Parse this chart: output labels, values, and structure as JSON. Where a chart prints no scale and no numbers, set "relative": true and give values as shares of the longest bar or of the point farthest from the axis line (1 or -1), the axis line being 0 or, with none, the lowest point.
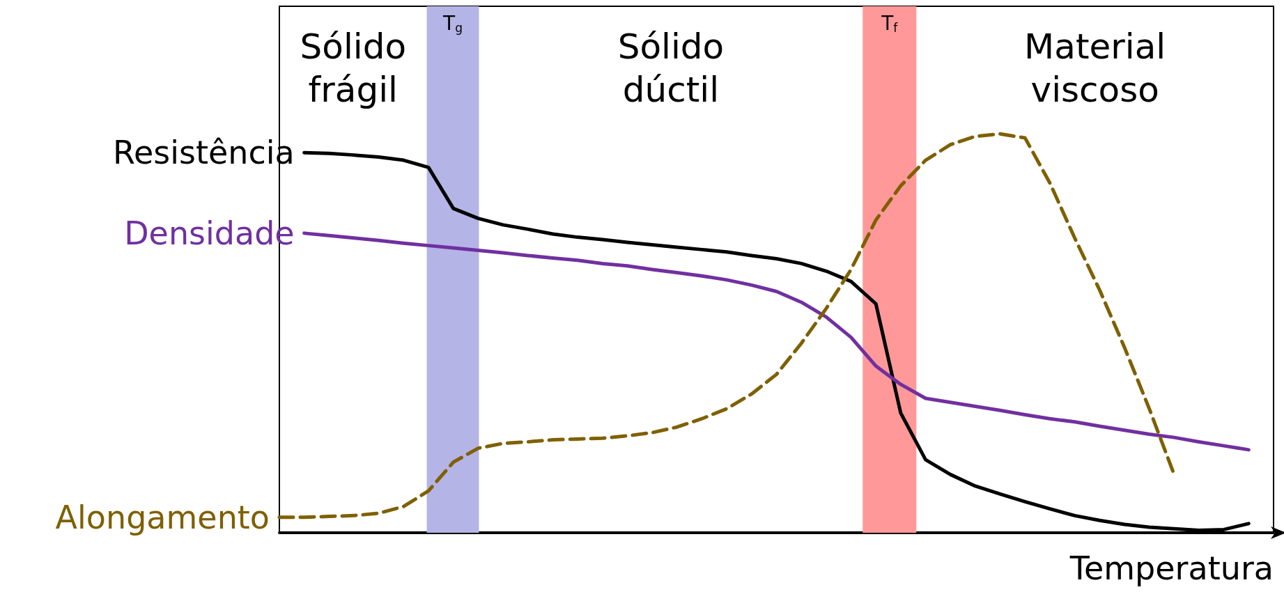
{
  "chart_data": {
    "type": "line",
    "relative": true,
    "xlabel": "Temperatura",
    "categories": [
      null,
      null,
      null,
      null,
      null,
      null,
      null,
      null,
      null,
      null,
      null,
      null,
      null,
      null,
      null,
      null,
      null,
      null,
      null,
      null,
      null,
      null,
      null,
      null,
      null,
      null,
      null,
      null,
      null,
      null,
      null,
      null,
      null,
      null,
      null,
      null,
      null,
      null,
      null,
      null,
      null
    ],
    "series": [
      {
        "name": "Resistência",
        "color": "#000000",
        "line_style": "solid",
        "values": [
          null,
          0.953,
          0.951,
          0.947,
          0.942,
          0.934,
          0.916,
          0.813,
          0.788,
          0.772,
          0.761,
          0.749,
          0.741,
          0.735,
          0.728,
          0.722,
          0.716,
          0.71,
          0.704,
          0.695,
          0.687,
          0.675,
          0.656,
          0.63,
          0.574,
          0.3,
          0.183,
          0.146,
          0.117,
          0.097,
          0.078,
          0.06,
          0.043,
          0.031,
          0.021,
          0.014,
          0.01,
          0.006,
          0.008,
          0.023,
          null
        ]
      },
      {
        "name": "Densidade",
        "color": "#7030a0",
        "line_style": "solid",
        "values": [
          null,
          0.751,
          0.745,
          0.739,
          0.733,
          0.726,
          0.72,
          0.714,
          0.708,
          0.702,
          0.695,
          0.689,
          0.683,
          0.675,
          0.669,
          0.66,
          0.652,
          0.644,
          0.634,
          0.621,
          0.605,
          0.578,
          0.541,
          0.49,
          0.418,
          0.372,
          0.337,
          0.327,
          0.317,
          0.307,
          0.296,
          0.286,
          0.278,
          0.267,
          0.257,
          0.247,
          0.239,
          0.228,
          0.218,
          0.208,
          null
        ]
      },
      {
        "name": "Alongamento",
        "color": "#7f6000",
        "line_style": "dashed",
        "values": [
          0.039,
          0.039,
          0.041,
          0.043,
          0.049,
          0.066,
          0.105,
          0.177,
          0.212,
          0.224,
          0.228,
          0.233,
          0.235,
          0.237,
          0.243,
          0.251,
          0.265,
          0.286,
          0.311,
          0.348,
          0.397,
          0.475,
          0.562,
          0.66,
          0.784,
          0.87,
          0.934,
          0.973,
          0.994,
          1,
          0.99,
          0.877,
          0.739,
          0.609,
          0.465,
          0.311,
          0.146,
          null,
          null,
          null,
          null
        ]
      }
    ],
    "annotations": [
      "Sólido\nfrágil",
      "T$_{g}$",
      "Sólido\ndúctil",
      "T$_{f}$",
      "Material\nviscoso"
    ],
    "marker": "none"
  }
}
